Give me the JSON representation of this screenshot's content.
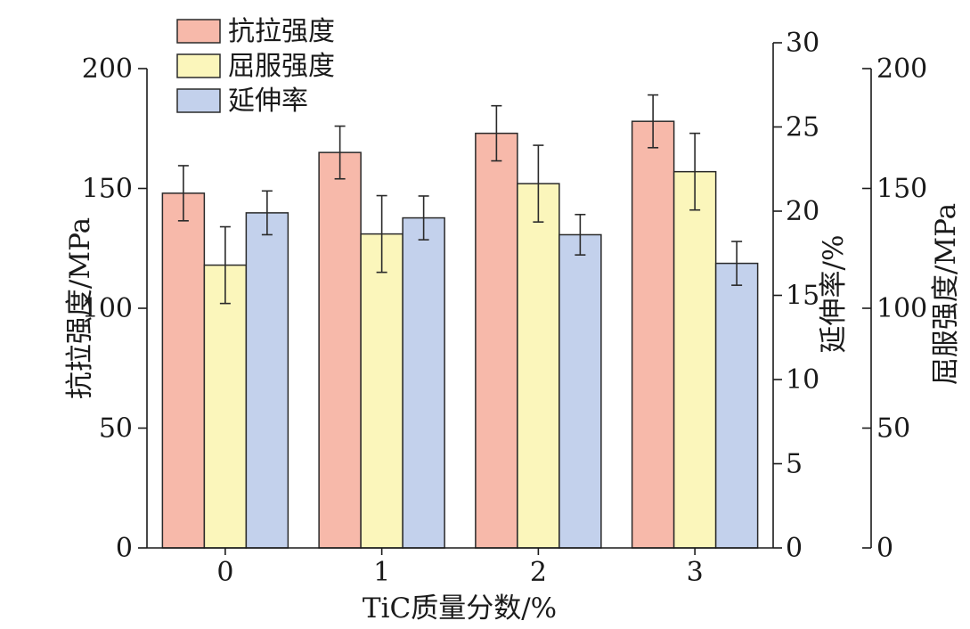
{
  "chart_data": {
    "type": "bar",
    "categories": [
      "0",
      "1",
      "2",
      "3"
    ],
    "xlabel": "TiC质量分数/%",
    "axes": {
      "left": {
        "label": "抗拉强度/MPa",
        "lim": [
          0,
          200
        ],
        "ticks": [
          0,
          50,
          100,
          150,
          200
        ]
      },
      "middle": {
        "label": "延伸率/%",
        "lim": [
          0,
          30
        ],
        "ticks": [
          0,
          5,
          10,
          15,
          20,
          25,
          30
        ]
      },
      "right": {
        "label": "屈服强度/MPa",
        "lim": [
          0,
          200
        ],
        "ticks": [
          0,
          50,
          100,
          150,
          200
        ]
      }
    },
    "series": [
      {
        "name": "抗拉强度",
        "axis": "left",
        "color": "#f7b9aa",
        "values": [
          148,
          165,
          173,
          178
        ],
        "errors": [
          11.5,
          11,
          11.5,
          11
        ]
      },
      {
        "name": "屈服强度",
        "axis": "right",
        "color": "#fbf6bb",
        "values": [
          118,
          131,
          152,
          157
        ],
        "errors": [
          16,
          16,
          16,
          16
        ]
      },
      {
        "name": "延伸率",
        "axis": "middle",
        "color": "#c3d1ec",
        "values": [
          19.9,
          19.6,
          18.6,
          16.9
        ],
        "errors": [
          1.3,
          1.3,
          1.2,
          1.3
        ]
      }
    ],
    "legend": {
      "position": "top-left"
    },
    "grid": false
  }
}
